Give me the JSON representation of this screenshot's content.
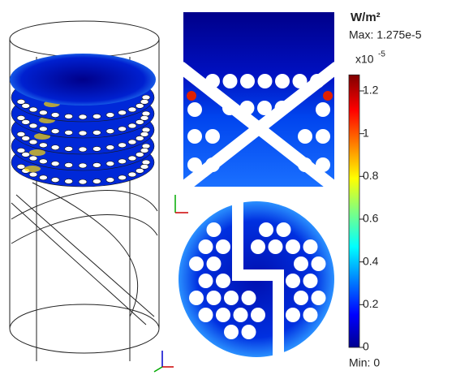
{
  "colorbar": {
    "unit": "W/m²",
    "max_label": "Max: 1.275e-5",
    "min_label": "Min: 0",
    "multiplier": "x10",
    "exponent": "-5",
    "range": [
      0,
      1.275
    ],
    "ticks": [
      0,
      0.2,
      0.4,
      0.6,
      0.8,
      1,
      1.2
    ]
  }
}
